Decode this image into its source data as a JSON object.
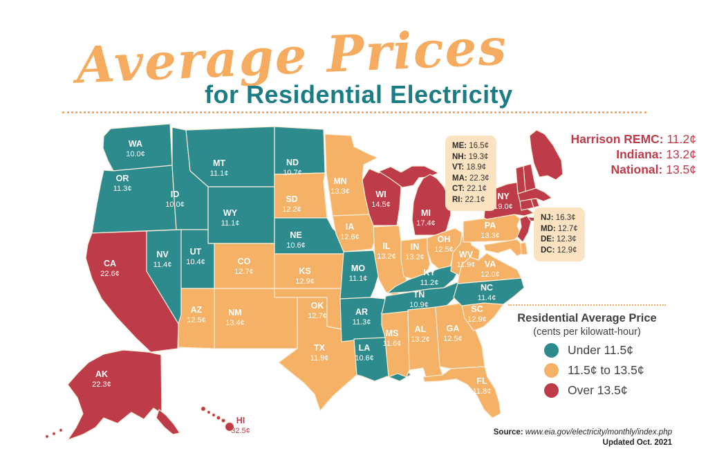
{
  "title": {
    "script": "Average Prices",
    "subtitle": "for Residential Electricity"
  },
  "header_stats": [
    {
      "label": "Harrison REMC:",
      "value": "11.2¢"
    },
    {
      "label": "Indiana:",
      "value": "13.2¢"
    },
    {
      "label": "National:",
      "value": "13.5¢"
    }
  ],
  "callouts": {
    "northeast": [
      {
        "code": "ME",
        "value": "16.5¢"
      },
      {
        "code": "NH",
        "value": "19.3¢"
      },
      {
        "code": "VT",
        "value": "18.9¢"
      },
      {
        "code": "MA",
        "value": "22.3¢"
      },
      {
        "code": "CT",
        "value": "22.1¢"
      },
      {
        "code": "RI",
        "value": "22.1¢"
      }
    ],
    "midatlantic": [
      {
        "code": "NJ",
        "value": "16.3¢"
      },
      {
        "code": "MD",
        "value": "12.7¢"
      },
      {
        "code": "DE",
        "value": "12.3¢"
      },
      {
        "code": "DC",
        "value": "12.9¢"
      }
    ]
  },
  "legend": {
    "title": "Residential Average Price",
    "subtitle": "(cents per kilowatt-hour)",
    "items": [
      {
        "tier": "under",
        "label": "Under 11.5¢",
        "color": "#2E8B8D"
      },
      {
        "tier": "mid",
        "label": "11.5¢ to 13.5¢",
        "color": "#F5B166"
      },
      {
        "tier": "over",
        "label": "Over 13.5¢",
        "color": "#BE3B49"
      }
    ]
  },
  "source": {
    "label": "Source:",
    "url": "www.eia.gov/electricity/monthly/index.php",
    "updated": "Updated Oct. 2021"
  },
  "chart_data": {
    "type": "choropleth_map",
    "title": "Average Prices for Residential Electricity",
    "unit": "cents per kilowatt-hour",
    "tiers": {
      "under": "Under 11.5¢",
      "mid": "11.5¢ to 13.5¢",
      "over": "Over 13.5¢"
    },
    "states": [
      {
        "code": "WA",
        "value": "10.0¢",
        "tier": "under"
      },
      {
        "code": "OR",
        "value": "11.3¢",
        "tier": "under"
      },
      {
        "code": "CA",
        "value": "22.6¢",
        "tier": "over"
      },
      {
        "code": "NV",
        "value": "11.4¢",
        "tier": "under"
      },
      {
        "code": "ID",
        "value": "10.0¢",
        "tier": "under"
      },
      {
        "code": "MT",
        "value": "11.1¢",
        "tier": "under"
      },
      {
        "code": "WY",
        "value": "11.1¢",
        "tier": "under"
      },
      {
        "code": "UT",
        "value": "10.4¢",
        "tier": "under"
      },
      {
        "code": "CO",
        "value": "12.7¢",
        "tier": "mid"
      },
      {
        "code": "AZ",
        "value": "12.5¢",
        "tier": "mid"
      },
      {
        "code": "NM",
        "value": "13.4¢",
        "tier": "mid"
      },
      {
        "code": "ND",
        "value": "10.7¢",
        "tier": "under"
      },
      {
        "code": "SD",
        "value": "12.2¢",
        "tier": "mid"
      },
      {
        "code": "NE",
        "value": "10.6¢",
        "tier": "under"
      },
      {
        "code": "KS",
        "value": "12.9¢",
        "tier": "mid"
      },
      {
        "code": "OK",
        "value": "12.7¢",
        "tier": "mid"
      },
      {
        "code": "TX",
        "value": "11.9¢",
        "tier": "mid"
      },
      {
        "code": "MN",
        "value": "13.3¢",
        "tier": "mid"
      },
      {
        "code": "IA",
        "value": "12.6¢",
        "tier": "mid"
      },
      {
        "code": "MO",
        "value": "11.1¢",
        "tier": "under"
      },
      {
        "code": "AR",
        "value": "11.3¢",
        "tier": "under"
      },
      {
        "code": "LA",
        "value": "10.6¢",
        "tier": "under"
      },
      {
        "code": "WI",
        "value": "14.5¢",
        "tier": "over"
      },
      {
        "code": "IL",
        "value": "13.2¢",
        "tier": "mid"
      },
      {
        "code": "MS",
        "value": "11.6¢",
        "tier": "mid"
      },
      {
        "code": "MI",
        "value": "17.4¢",
        "tier": "over"
      },
      {
        "code": "IN",
        "value": "13.2¢",
        "tier": "mid"
      },
      {
        "code": "OH",
        "value": "12.5¢",
        "tier": "mid"
      },
      {
        "code": "KY",
        "value": "11.2¢",
        "tier": "under"
      },
      {
        "code": "TN",
        "value": "10.9¢",
        "tier": "under"
      },
      {
        "code": "AL",
        "value": "13.2¢",
        "tier": "mid"
      },
      {
        "code": "GA",
        "value": "12.5¢",
        "tier": "mid"
      },
      {
        "code": "FL",
        "value": "11.8¢",
        "tier": "mid"
      },
      {
        "code": "SC",
        "value": "12.9¢",
        "tier": "mid"
      },
      {
        "code": "NC",
        "value": "11.4¢",
        "tier": "under"
      },
      {
        "code": "VA",
        "value": "12.0¢",
        "tier": "mid"
      },
      {
        "code": "WV",
        "value": "11.9¢",
        "tier": "mid"
      },
      {
        "code": "PA",
        "value": "13.3¢",
        "tier": "mid"
      },
      {
        "code": "NY",
        "value": "19.0¢",
        "tier": "over"
      },
      {
        "code": "NJ",
        "value": "16.3¢",
        "tier": "over"
      },
      {
        "code": "MD",
        "value": "12.7¢",
        "tier": "mid"
      },
      {
        "code": "DE",
        "value": "12.3¢",
        "tier": "mid"
      },
      {
        "code": "DC",
        "value": "12.9¢",
        "tier": "mid"
      },
      {
        "code": "ME",
        "value": "16.5¢",
        "tier": "over"
      },
      {
        "code": "NH",
        "value": "19.3¢",
        "tier": "over"
      },
      {
        "code": "VT",
        "value": "18.9¢",
        "tier": "over"
      },
      {
        "code": "MA",
        "value": "22.3¢",
        "tier": "over"
      },
      {
        "code": "CT",
        "value": "22.1¢",
        "tier": "over"
      },
      {
        "code": "RI",
        "value": "22.1¢",
        "tier": "over"
      },
      {
        "code": "AK",
        "value": "22.3¢",
        "tier": "over"
      },
      {
        "code": "HI",
        "value": "32.5¢",
        "tier": "over"
      }
    ]
  }
}
